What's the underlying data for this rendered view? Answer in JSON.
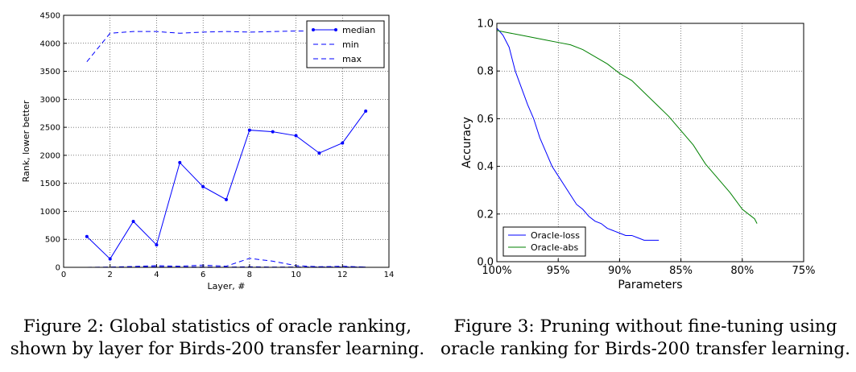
{
  "figure2": {
    "caption_line1": "Figure 2: Global statistics of oracle ranking,",
    "caption_line2": "shown by layer for Birds-200 transfer learning."
  },
  "figure3": {
    "caption_line1": "Figure 3: Pruning without fine-tuning using",
    "caption_line2": "oracle ranking for Birds-200 transfer learning."
  },
  "chart_data": [
    {
      "type": "line",
      "title": "",
      "xlabel": "Layer, #",
      "ylabel": "Rank, lower better",
      "xlim": [
        0,
        14
      ],
      "ylim": [
        0,
        4500
      ],
      "xticks": [
        0,
        2,
        4,
        6,
        8,
        10,
        12,
        14
      ],
      "yticks": [
        0,
        500,
        1000,
        1500,
        2000,
        2500,
        3000,
        3500,
        4000,
        4500
      ],
      "grid": true,
      "legend_position": "top-right",
      "x": [
        1,
        2,
        3,
        4,
        5,
        6,
        7,
        8,
        9,
        10,
        11,
        12,
        13
      ],
      "series": [
        {
          "name": "median",
          "style": "solid-dots",
          "color": "#0000ff",
          "values": [
            550,
            150,
            820,
            400,
            1870,
            1440,
            1210,
            2450,
            2420,
            2350,
            2040,
            2220,
            2790
          ]
        },
        {
          "name": "min",
          "style": "dashed",
          "color": "#0000ff",
          "values": [
            0,
            0,
            5,
            10,
            5,
            10,
            5,
            10,
            5,
            5,
            5,
            5,
            5
          ]
        },
        {
          "name": "max",
          "style": "dashed",
          "color": "#0000ff",
          "values": [
            3670,
            4180,
            4210,
            4210,
            4180,
            4200,
            4210,
            4200,
            4210,
            4220,
            4220,
            4230,
            4230
          ]
        }
      ],
      "extra_dashed": {
        "x": [
          1,
          2,
          3,
          4,
          5,
          6,
          7,
          8,
          9,
          10,
          11,
          12,
          13
        ],
        "values": [
          0,
          5,
          15,
          30,
          20,
          40,
          20,
          160,
          110,
          30,
          10,
          20,
          5
        ]
      }
    },
    {
      "type": "line",
      "title": "",
      "xlabel": "Parameters",
      "ylabel": "Accuracy",
      "xlim": [
        100,
        75
      ],
      "ylim": [
        0,
        1.0
      ],
      "xticks": [
        100,
        95,
        90,
        85,
        80,
        75
      ],
      "xtick_labels": [
        "100%",
        "95%",
        "90%",
        "85%",
        "80%",
        "75%"
      ],
      "yticks": [
        0.0,
        0.2,
        0.4,
        0.6,
        0.8,
        1.0
      ],
      "ytick_labels": [
        "0.0",
        "0.2",
        "0.4",
        "0.6",
        "0.8",
        "1.0"
      ],
      "grid": true,
      "legend_position": "bottom-left",
      "series": [
        {
          "name": "Oracle-loss",
          "color": "#0000ff",
          "x": [
            100,
            99.5,
            99,
            98.5,
            98,
            97.5,
            97,
            96.5,
            96,
            95.5,
            95,
            94.5,
            94,
            93.5,
            93,
            92.5,
            92,
            91.5,
            91,
            90.5,
            90,
            89.5,
            89,
            88.5,
            88,
            87.5,
            87,
            86.8
          ],
          "values": [
            0.98,
            0.95,
            0.9,
            0.8,
            0.73,
            0.66,
            0.6,
            0.52,
            0.46,
            0.4,
            0.36,
            0.32,
            0.28,
            0.24,
            0.22,
            0.19,
            0.17,
            0.16,
            0.14,
            0.13,
            0.12,
            0.11,
            0.11,
            0.1,
            0.09,
            0.09,
            0.09,
            0.09
          ]
        },
        {
          "name": "Oracle-abs",
          "color": "#008000",
          "x": [
            100,
            99,
            98,
            97,
            96,
            95,
            94,
            93,
            92,
            91,
            90,
            89,
            88,
            87,
            86,
            85,
            84,
            83,
            82,
            81,
            80,
            79.5,
            79,
            78.8
          ],
          "values": [
            0.97,
            0.96,
            0.95,
            0.94,
            0.93,
            0.92,
            0.91,
            0.89,
            0.86,
            0.83,
            0.79,
            0.76,
            0.71,
            0.66,
            0.61,
            0.55,
            0.49,
            0.41,
            0.35,
            0.29,
            0.22,
            0.2,
            0.18,
            0.16
          ]
        }
      ]
    }
  ]
}
